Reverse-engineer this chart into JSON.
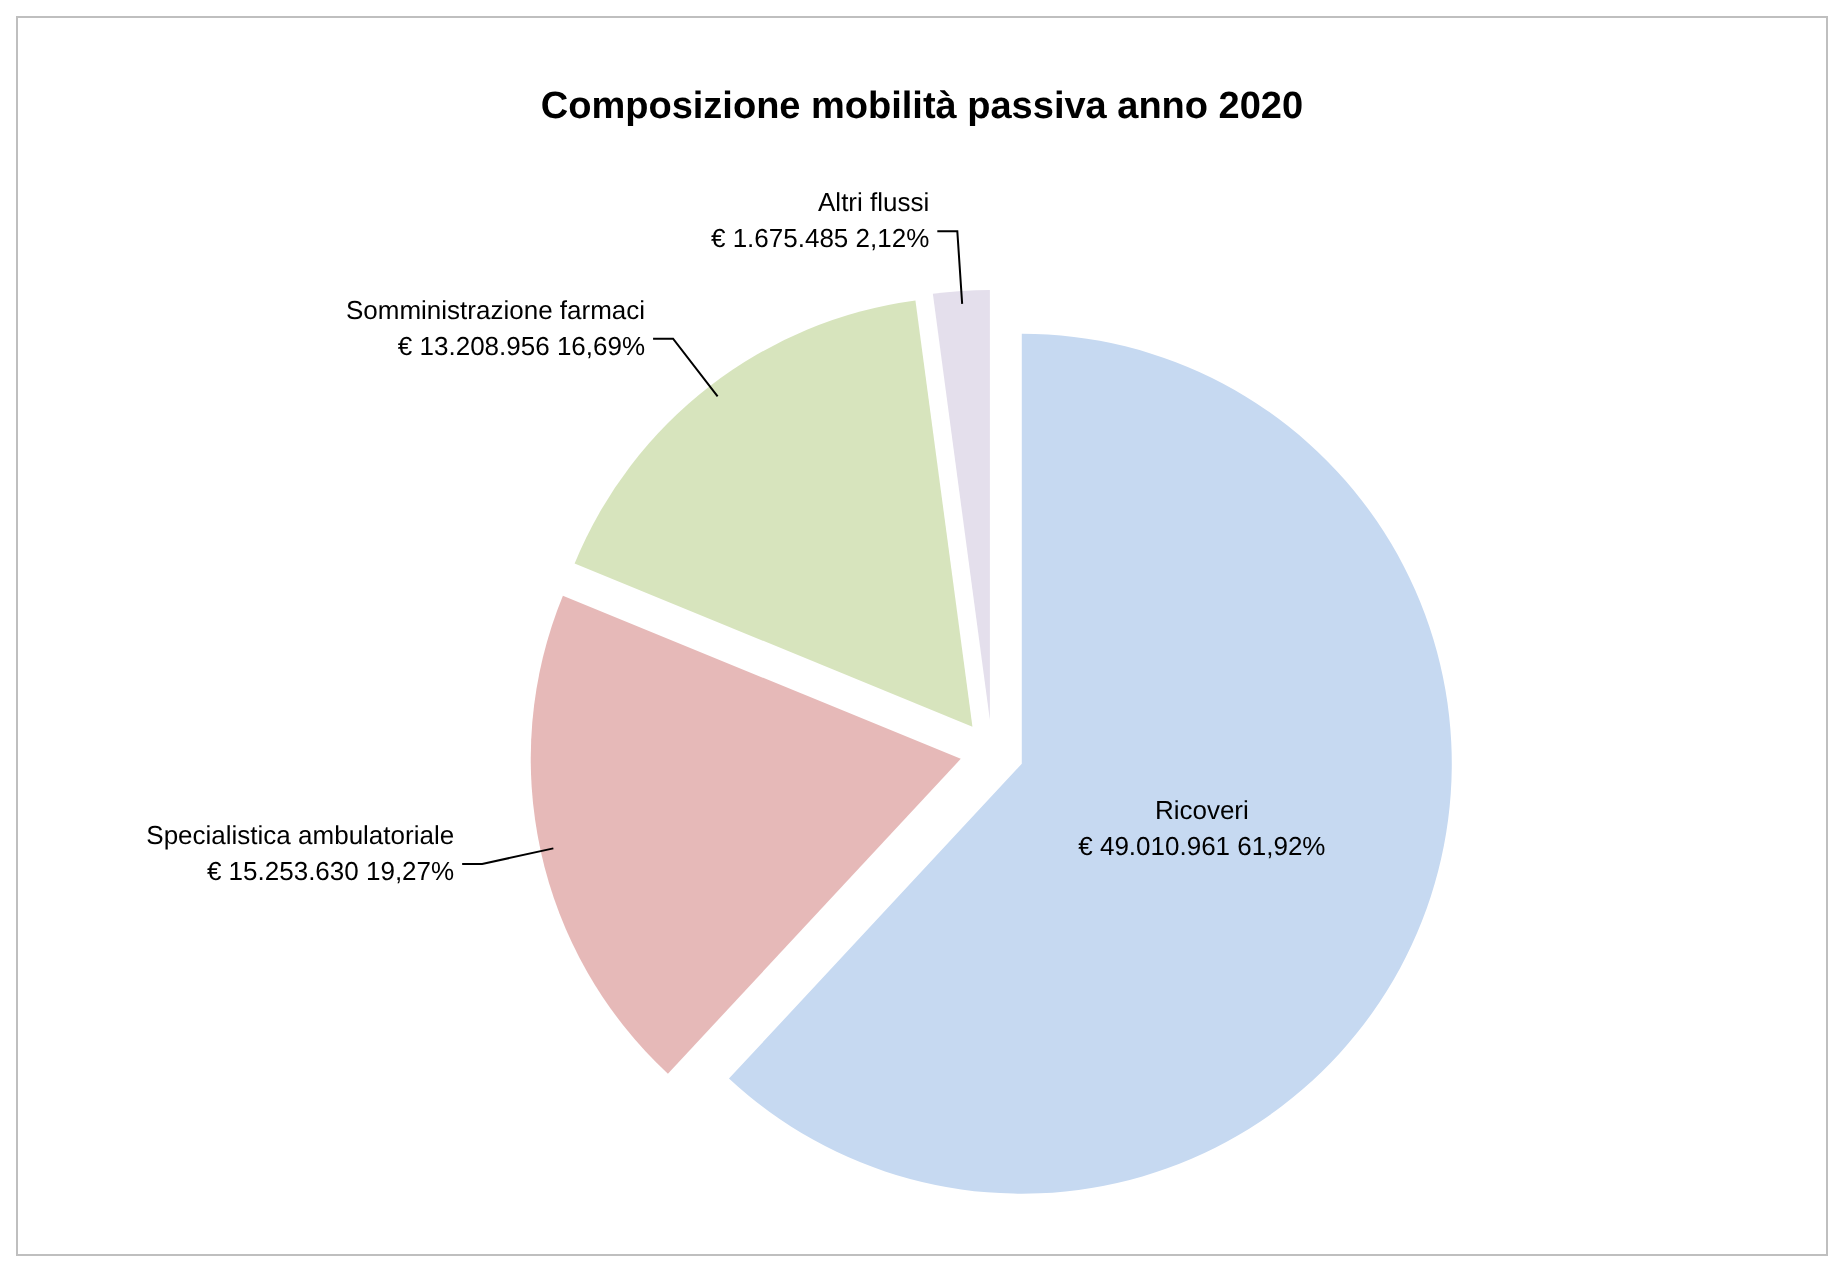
{
  "chart_data": {
    "type": "pie",
    "title": "Composizione mobilità passiva anno 2020",
    "categories": [
      "Ricoveri",
      "Specialistica ambulatoriale",
      "Somministrazione farmaci",
      "Altri flussi"
    ],
    "values": [
      49010961,
      15253630,
      13208956,
      1675485
    ],
    "colors": [
      "#c6d9f1",
      "#e6b9b8",
      "#d7e4bd",
      "#e4dfec"
    ],
    "value_labels": [
      "€ 49.010.961 61,92%",
      "€ 15.253.630 19,27%",
      "€ 13.208.956 16,69%",
      "€ 1.675.485 2,12%"
    ]
  }
}
